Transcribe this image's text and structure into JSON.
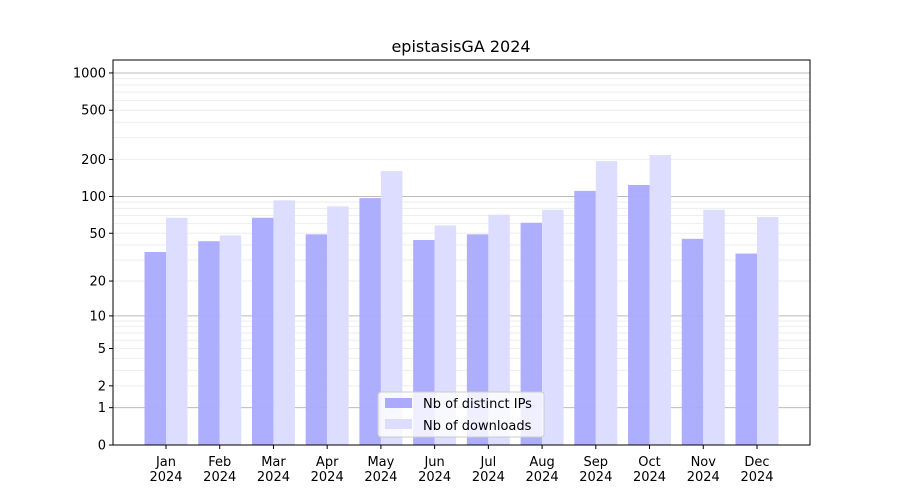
{
  "chart_data": {
    "type": "bar",
    "title": "epistasisGA 2024",
    "xlabel": "",
    "ylabel": "",
    "yscale": "log(1+y)",
    "ylim": [
      0,
      1200
    ],
    "yticks": [
      0,
      1,
      2,
      5,
      10,
      20,
      50,
      100,
      200,
      500,
      1000
    ],
    "grid": true,
    "legend_position": "bottom-center",
    "categories": [
      [
        "Jan",
        "2024"
      ],
      [
        "Feb",
        "2024"
      ],
      [
        "Mar",
        "2024"
      ],
      [
        "Apr",
        "2024"
      ],
      [
        "May",
        "2024"
      ],
      [
        "Jun",
        "2024"
      ],
      [
        "Jul",
        "2024"
      ],
      [
        "Aug",
        "2024"
      ],
      [
        "Sep",
        "2024"
      ],
      [
        "Oct",
        "2024"
      ],
      [
        "Nov",
        "2024"
      ],
      [
        "Dec",
        "2024"
      ]
    ],
    "series": [
      {
        "name": "Nb of distinct IPs",
        "color": "#aaaaff",
        "values": [
          35,
          43,
          67,
          49,
          97,
          44,
          49,
          61,
          111,
          124,
          45,
          34
        ]
      },
      {
        "name": "Nb of downloads",
        "color": "#ddddff",
        "values": [
          67,
          48,
          93,
          83,
          161,
          58,
          71,
          78,
          194,
          217,
          78,
          68
        ]
      }
    ]
  }
}
